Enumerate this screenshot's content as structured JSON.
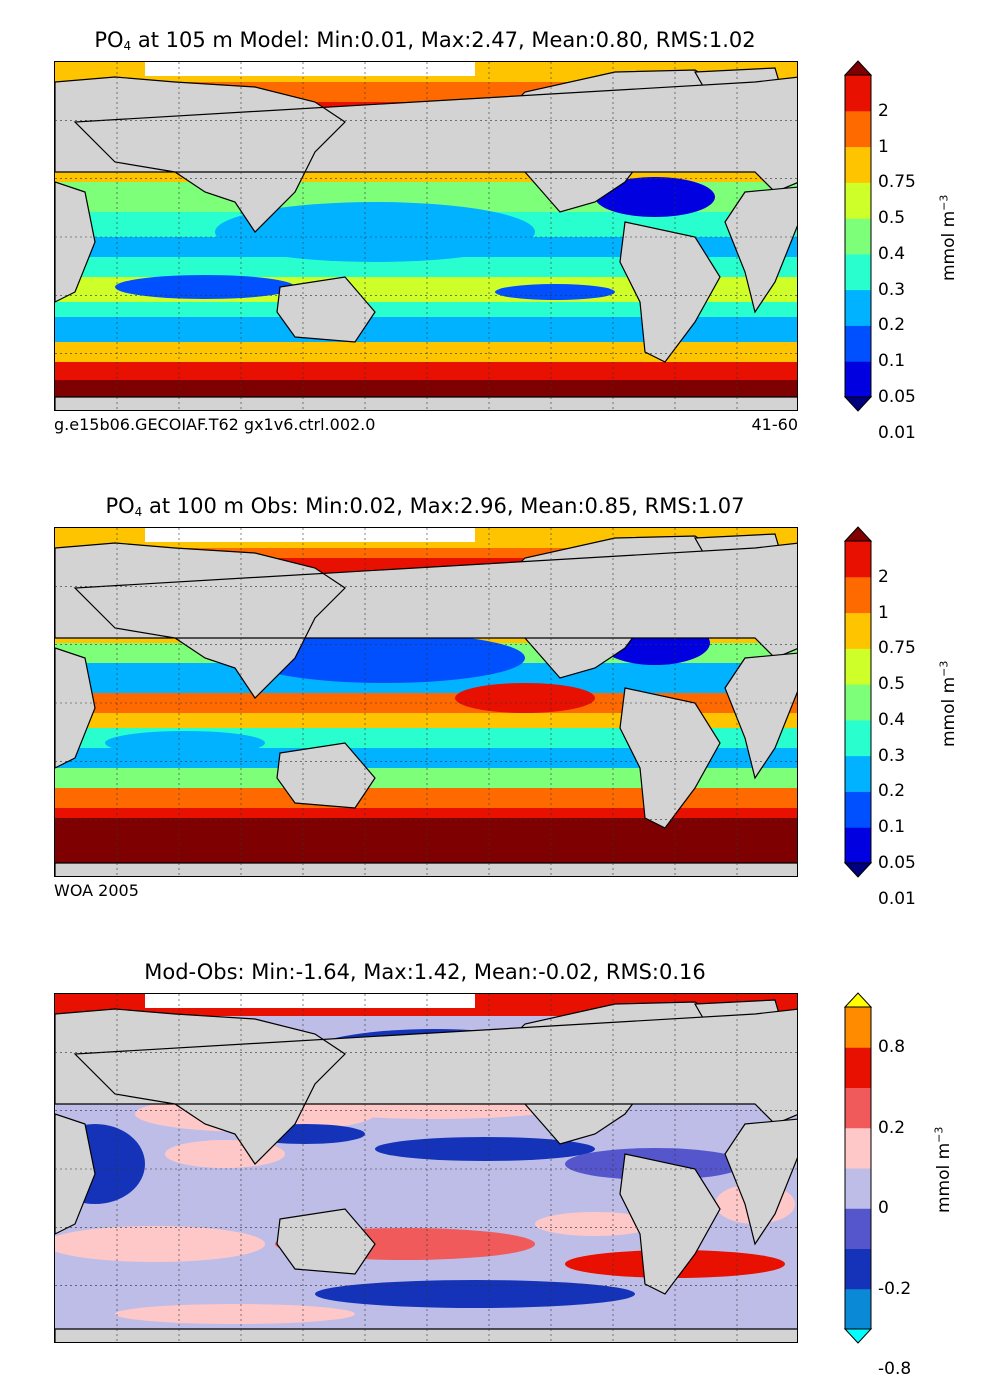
{
  "panels": [
    {
      "title_prefix": "PO",
      "title_sub": "4",
      "title_rest": " at 105 m Model: Min:0.01, Max:2.47, Mean:0.80, RMS:1.02",
      "subtitle_left": "g.e15b06.GECOIAF.T62 gx1v6.ctrl.002.0",
      "subtitle_right": "41-60",
      "colorbar_ticks": [
        "2",
        "1",
        "0.75",
        "0.5",
        "0.4",
        "0.3",
        "0.2",
        "0.1",
        "0.05",
        "0.01"
      ],
      "colorbar_colors": [
        "#00007f",
        "#0000e0",
        "#0050ff",
        "#00b2ff",
        "#29ffce",
        "#7dff7a",
        "#ceff29",
        "#ffc400",
        "#ff6a00",
        "#e81000",
        "#7f0000"
      ],
      "units_label": "mmol m",
      "units_exp": "−3"
    },
    {
      "title_prefix": "PO",
      "title_sub": "4",
      "title_rest": " at 100 m Obs: Min:0.02, Max:2.96, Mean:0.85, RMS:1.07",
      "subtitle_left": "WOA 2005",
      "subtitle_right": "",
      "colorbar_ticks": [
        "2",
        "1",
        "0.75",
        "0.5",
        "0.4",
        "0.3",
        "0.2",
        "0.1",
        "0.05",
        "0.01"
      ],
      "colorbar_colors": [
        "#00007f",
        "#0000e0",
        "#0050ff",
        "#00b2ff",
        "#29ffce",
        "#7dff7a",
        "#ceff29",
        "#ffc400",
        "#ff6a00",
        "#e81000",
        "#7f0000"
      ],
      "units_label": "mmol m",
      "units_exp": "−3"
    },
    {
      "title_prefix": "Mod-Obs: Min:-1.64, Max:1.42, Mean:-0.02, RMS:0.16",
      "title_sub": "",
      "title_rest": "",
      "subtitle_left": "",
      "subtitle_right": "",
      "colorbar_ticks": [
        "0.8",
        "0.2",
        "0",
        "-0.2",
        "-0.8"
      ],
      "colorbar_colors": [
        "#00ffff",
        "#0a8ad6",
        "#1433b8",
        "#5555cc",
        "#bdbde8",
        "#ffc8c8",
        "#f05a5a",
        "#e81000",
        "#ff8c00",
        "#ffff00"
      ],
      "units_label": "mmol m",
      "units_exp": "−3"
    }
  ],
  "chart_data": [
    {
      "type": "heatmap",
      "title": "PO4 at 105 m Model: Min:0.01, Max:2.47, Mean:0.80, RMS:1.02",
      "subtitle": "g.e15b06.GECOIAF.T62 gx1v6.ctrl.002.0",
      "period": "41-60",
      "stats": {
        "min": 0.01,
        "max": 2.47,
        "mean": 0.8,
        "rms": 1.02
      },
      "colorbar_levels": [
        0.01,
        0.05,
        0.1,
        0.2,
        0.3,
        0.4,
        0.5,
        0.75,
        1,
        2
      ],
      "colorbar_label": "mmol m^-3",
      "grid": true
    },
    {
      "type": "heatmap",
      "title": "PO4 at 100 m Obs: Min:0.02, Max:2.96, Mean:0.85, RMS:1.07",
      "subtitle": "WOA 2005",
      "stats": {
        "min": 0.02,
        "max": 2.96,
        "mean": 0.85,
        "rms": 1.07
      },
      "colorbar_levels": [
        0.01,
        0.05,
        0.1,
        0.2,
        0.3,
        0.4,
        0.5,
        0.75,
        1,
        2
      ],
      "colorbar_label": "mmol m^-3",
      "grid": true
    },
    {
      "type": "heatmap",
      "title": "Mod-Obs: Min:-1.64, Max:1.42, Mean:-0.02, RMS:0.16",
      "stats": {
        "min": -1.64,
        "max": 1.42,
        "mean": -0.02,
        "rms": 0.16
      },
      "colorbar_levels": [
        -0.8,
        -0.2,
        0,
        0.2,
        0.8
      ],
      "colorbar_label": "mmol m^-3",
      "grid": true
    }
  ]
}
